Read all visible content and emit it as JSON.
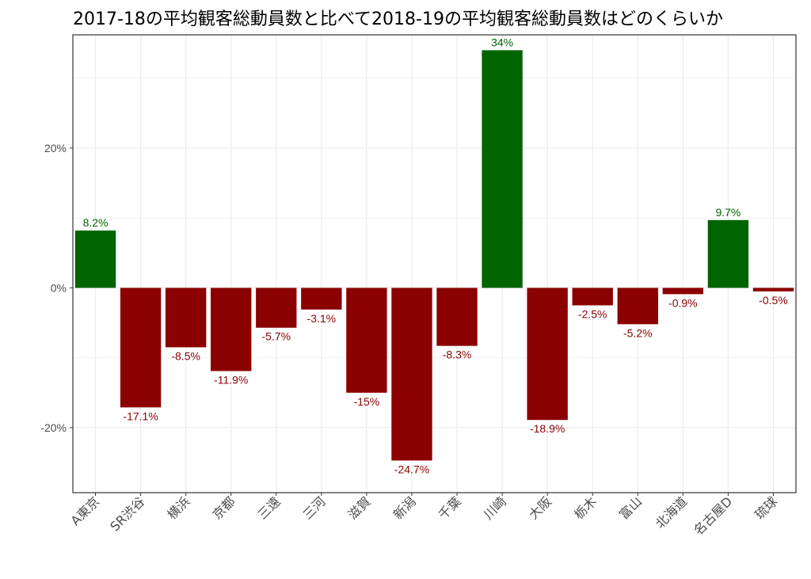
{
  "chart_data": {
    "type": "bar",
    "title": "2017-18の平均観客総動員数と比べて2018-19の平均観客総動員数はどのくらいか",
    "xlabel": "",
    "ylabel": "",
    "categories": [
      "A東京",
      "SR渋谷",
      "横浜",
      "京都",
      "三遠",
      "三河",
      "滋賀",
      "新潟",
      "千葉",
      "川崎",
      "大阪",
      "栃木",
      "富山",
      "北海道",
      "名古屋D",
      "琉球"
    ],
    "values": [
      8.2,
      -17.1,
      -8.5,
      -11.9,
      -5.7,
      -3.1,
      -15,
      -24.7,
      -8.3,
      34,
      -18.9,
      -2.5,
      -5.2,
      -0.9,
      9.7,
      -0.5
    ],
    "labels": [
      "8.2%",
      "-17.1%",
      "-8.5%",
      "-11.9%",
      "-5.7%",
      "-3.1%",
      "-15%",
      "-24.7%",
      "-8.3%",
      "34%",
      "-18.9%",
      "-2.5%",
      "-5.2%",
      "-0.9%",
      "9.7%",
      "-0.5%"
    ],
    "ylim": [
      -29.3,
      36.2
    ],
    "yticks": [
      -20,
      0,
      20
    ],
    "ytick_labels": [
      "-20%",
      "0%",
      "20%"
    ],
    "grid": true,
    "colors": {
      "positive": "#006400",
      "negative": "#8b0000",
      "panel_border": "#333333",
      "grid": "#ebebeb"
    }
  }
}
